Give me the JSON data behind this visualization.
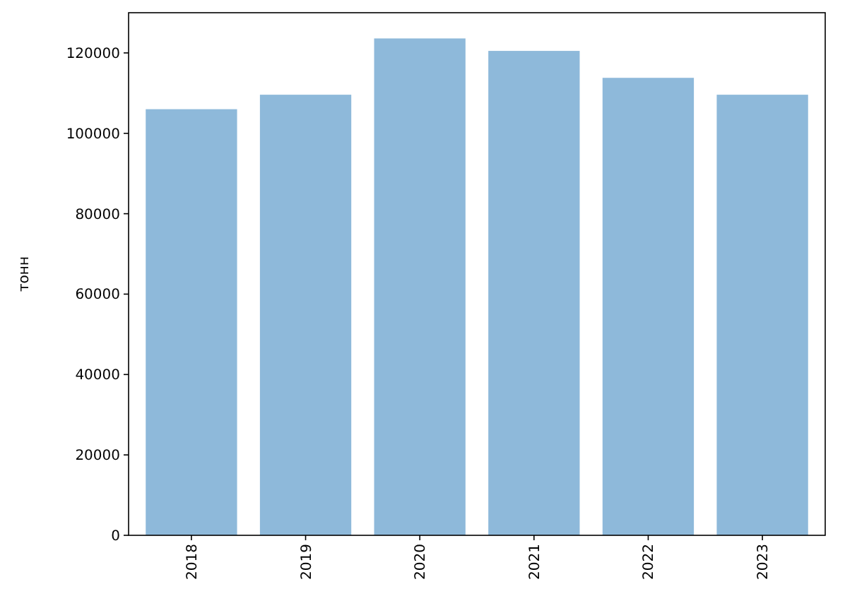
{
  "chart_data": {
    "type": "bar",
    "ylabel": "тонн",
    "categories": [
      "2018",
      "2019",
      "2020",
      "2021",
      "2022",
      "2023"
    ],
    "values": [
      106000,
      109600,
      123600,
      120500,
      113800,
      109600
    ],
    "color": "#8eb9da",
    "ylim": [
      0,
      130000
    ],
    "yticks": [
      0,
      20000,
      40000,
      60000,
      80000,
      100000,
      120000
    ],
    "grid": false
  }
}
